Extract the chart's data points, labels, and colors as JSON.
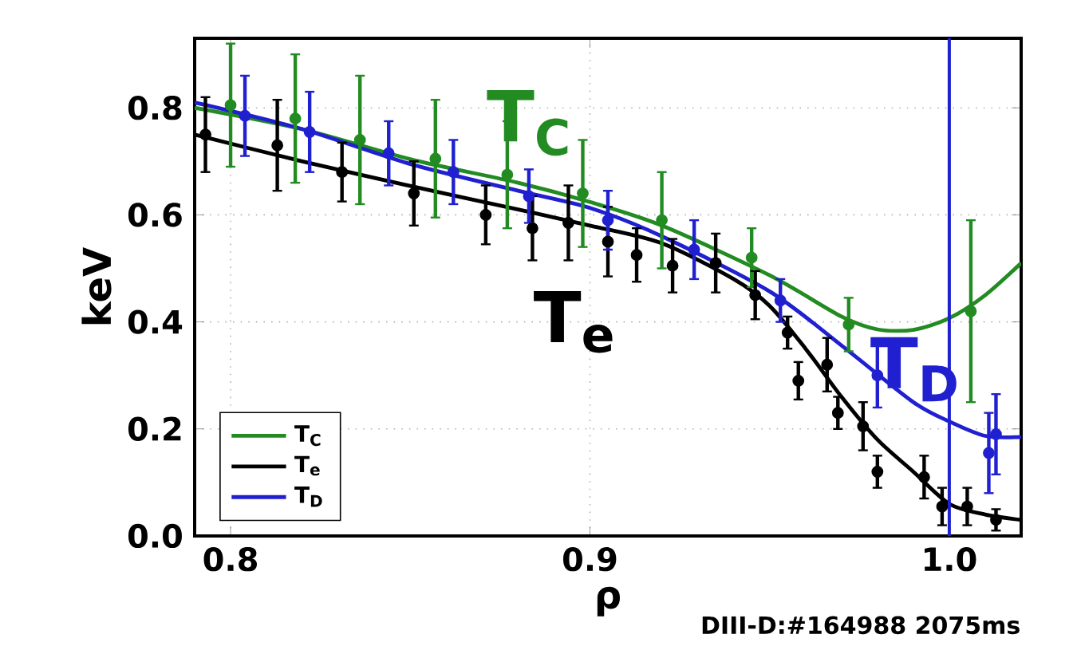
{
  "chart_data": {
    "type": "line",
    "xlabel": "ρ",
    "ylabel": "keV",
    "xlim": [
      0.79,
      1.02
    ],
    "ylim": [
      0,
      0.93
    ],
    "xticks": [
      0.8,
      0.9,
      {
        "value": 1.0,
        "label": "1.0"
      }
    ],
    "yticks": [
      {
        "value": 0,
        "label": "0.0"
      },
      0.2,
      0.4,
      0.6,
      0.8
    ],
    "grid": true,
    "legend": "bottom left",
    "series": [
      {
        "name": "T$_{C}$",
        "color": "#228b22",
        "marker": "none",
        "x": [
          0.79,
          0.82,
          0.85,
          0.88,
          0.9,
          0.92,
          0.95,
          0.97,
          0.98,
          0.99,
          1.0,
          1.01,
          1.02
        ],
        "values": [
          0.8,
          0.76,
          0.704,
          0.66,
          0.624,
          0.58,
          0.487,
          0.41,
          0.386,
          0.385,
          0.407,
          0.45,
          0.51
        ]
      },
      {
        "name": "T$_{e}$",
        "color": "#000000",
        "marker": "none",
        "x": [
          0.79,
          0.82,
          0.85,
          0.88,
          0.9,
          0.92,
          0.94,
          0.95,
          0.96,
          0.97,
          0.98,
          0.99,
          1.0,
          1.01,
          1.02
        ],
        "values": [
          0.75,
          0.7,
          0.654,
          0.61,
          0.58,
          0.547,
          0.48,
          0.43,
          0.35,
          0.26,
          0.18,
          0.12,
          0.06,
          0.04,
          0.03
        ]
      },
      {
        "name": "T$_{D}$",
        "color": "#2020d0",
        "marker": "none",
        "x": [
          0.79,
          0.82,
          0.85,
          0.88,
          0.9,
          0.92,
          0.95,
          0.97,
          0.99,
          1.0,
          1.01,
          1.02
        ],
        "values": [
          0.81,
          0.76,
          0.695,
          0.645,
          0.613,
          0.56,
          0.457,
          0.356,
          0.25,
          0.214,
          0.187,
          0.185
        ]
      },
      {
        "color": "#228b22",
        "type": "scatter",
        "marker": "circle",
        "x": [
          0.8,
          0.818,
          0.836,
          0.857,
          0.877,
          0.898,
          0.92,
          0.945,
          0.972,
          1.006
        ],
        "values": [
          0.805,
          0.78,
          0.74,
          0.705,
          0.675,
          0.64,
          0.59,
          0.52,
          0.395,
          0.42
        ],
        "errors": [
          0.115,
          0.12,
          0.12,
          0.11,
          0.1,
          0.1,
          0.09,
          0.055,
          0.05,
          0.17
        ]
      },
      {
        "color": "#000000",
        "type": "scatter",
        "marker": "circle",
        "x": [
          0.793,
          0.813,
          0.831,
          0.851,
          0.871,
          0.884,
          0.894,
          0.905,
          0.913,
          0.923,
          0.935,
          0.946,
          0.955,
          0.958,
          0.966,
          0.969,
          0.976,
          0.98,
          0.993,
          0.998,
          1.005,
          1.013
        ],
        "values": [
          0.75,
          0.73,
          0.68,
          0.64,
          0.6,
          0.575,
          0.585,
          0.55,
          0.525,
          0.505,
          0.51,
          0.45,
          0.38,
          0.29,
          0.32,
          0.23,
          0.205,
          0.12,
          0.11,
          0.055,
          0.055,
          0.03
        ],
        "errors": [
          0.07,
          0.085,
          0.055,
          0.06,
          0.055,
          0.06,
          0.07,
          0.065,
          0.05,
          0.05,
          0.055,
          0.045,
          0.03,
          0.035,
          0.05,
          0.03,
          0.045,
          0.03,
          0.04,
          0.035,
          0.035,
          0.02
        ]
      },
      {
        "color": "#2020d0",
        "type": "scatter",
        "marker": "circle",
        "x": [
          0.804,
          0.822,
          0.844,
          0.862,
          0.883,
          0.905,
          0.929,
          0.953,
          0.98,
          1.011,
          1.013
        ],
        "values": [
          0.785,
          0.755,
          0.715,
          0.68,
          0.635,
          0.59,
          0.535,
          0.44,
          0.3,
          0.155,
          0.19
        ],
        "errors": [
          0.075,
          0.075,
          0.06,
          0.06,
          0.05,
          0.055,
          0.055,
          0.04,
          0.06,
          0.075,
          0.075
        ]
      }
    ],
    "ref_lines": [
      {
        "axis": "x",
        "value": 1.0,
        "color": "#2020d0"
      }
    ],
    "annotations": [
      "T$_{C}$",
      "T$_{e}$",
      "T$_{D}$",
      "DIII-D:#164988 2075ms"
    ]
  }
}
